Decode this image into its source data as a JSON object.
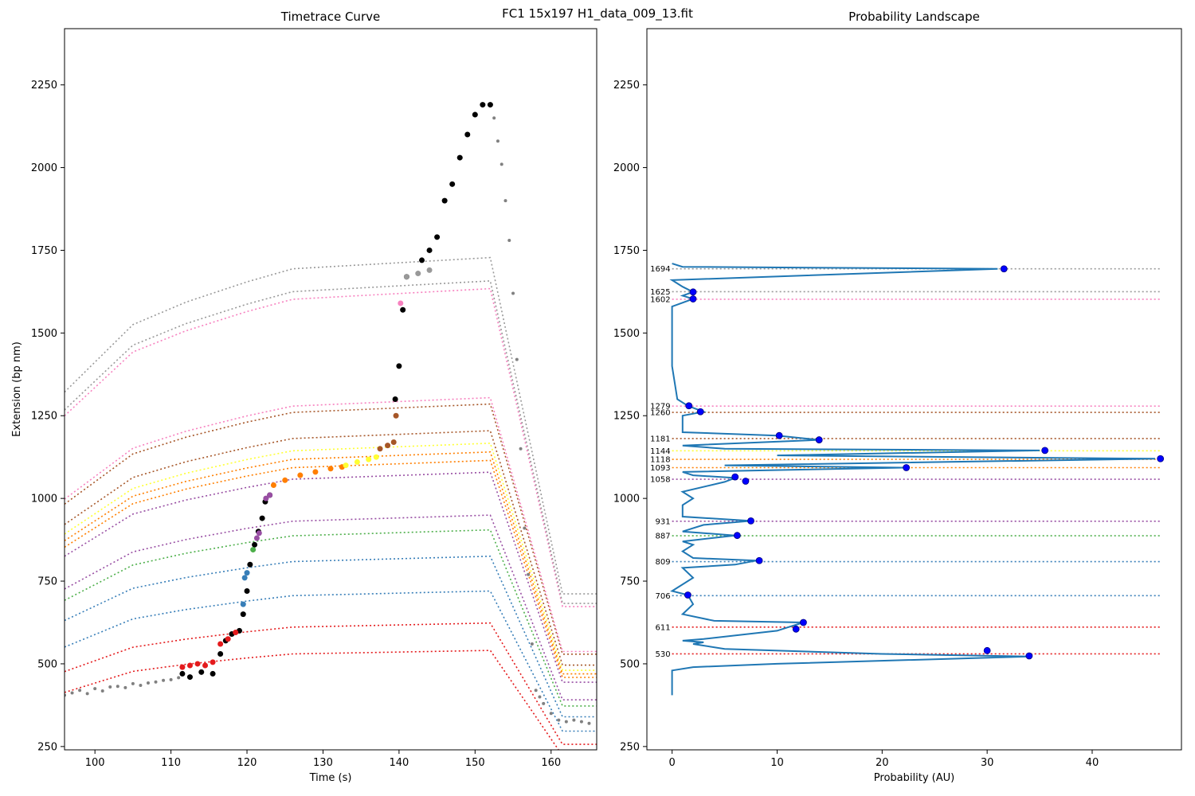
{
  "figure_title": "FC1 15x197 H1_data_009_13.fit",
  "chart_data": [
    {
      "type": "scatter",
      "title": "Timetrace Curve",
      "xlabel": "Time (s)",
      "ylabel": "Extension (bp nm)",
      "xlim": [
        96,
        166
      ],
      "ylim": [
        240,
        2420
      ],
      "xticks": [
        100,
        110,
        120,
        130,
        140,
        150,
        160
      ],
      "yticks": [
        250,
        500,
        750,
        1000,
        1250,
        1500,
        1750,
        2000,
        2250
      ],
      "grid": false,
      "series": [
        {
          "color": "#808080",
          "points": [
            [
              96,
              405
            ],
            [
              97,
              412
            ],
            [
              98,
              420
            ],
            [
              99,
              410
            ],
            [
              100,
              425
            ],
            [
              101,
              418
            ],
            [
              102,
              430
            ],
            [
              103,
              432
            ],
            [
              104,
              428
            ],
            [
              105,
              440
            ],
            [
              106,
              435
            ],
            [
              107,
              442
            ],
            [
              108,
              445
            ],
            [
              109,
              450
            ],
            [
              110,
              452
            ],
            [
              111,
              458
            ],
            [
              152.5,
              2150
            ],
            [
              153,
              2080
            ],
            [
              153.5,
              2010
            ],
            [
              154,
              1900
            ],
            [
              154.5,
              1780
            ],
            [
              155,
              1620
            ],
            [
              155.5,
              1420
            ],
            [
              156,
              1150
            ],
            [
              156.5,
              910
            ],
            [
              157,
              770
            ],
            [
              157.5,
              560
            ],
            [
              158,
              420
            ],
            [
              158.5,
              400
            ],
            [
              159,
              380
            ],
            [
              160,
              350
            ],
            [
              161,
              330
            ],
            [
              162,
              325
            ],
            [
              163,
              330
            ],
            [
              164,
              325
            ],
            [
              165,
              320
            ]
          ]
        },
        {
          "color": "#000000",
          "points": [
            [
              111.5,
              470
            ],
            [
              112.5,
              460
            ],
            [
              114,
              475
            ],
            [
              115.5,
              470
            ],
            [
              116.5,
              530
            ],
            [
              117.2,
              570
            ],
            [
              118,
              590
            ],
            [
              119,
              600
            ],
            [
              119.5,
              650
            ],
            [
              120,
              720
            ],
            [
              120.4,
              800
            ],
            [
              121,
              860
            ],
            [
              121.5,
              900
            ],
            [
              122,
              940
            ],
            [
              122.4,
              990
            ],
            [
              123,
              1010
            ],
            [
              139.5,
              1300
            ],
            [
              140,
              1400
            ],
            [
              140.5,
              1570
            ],
            [
              141,
              1670
            ],
            [
              143,
              1720
            ],
            [
              144,
              1750
            ],
            [
              145,
              1790
            ],
            [
              146,
              1900
            ],
            [
              147,
              1950
            ],
            [
              148,
              2030
            ],
            [
              149,
              2100
            ],
            [
              150,
              2160
            ],
            [
              151,
              2190
            ],
            [
              152,
              2190
            ]
          ]
        },
        {
          "color": "#e41a1c",
          "points": [
            [
              111.5,
              490
            ],
            [
              112.5,
              495
            ],
            [
              113.5,
              500
            ],
            [
              114.5,
              495
            ],
            [
              115.5,
              505
            ],
            [
              116.5,
              560
            ],
            [
              117.5,
              575
            ],
            [
              118.5,
              595
            ]
          ]
        },
        {
          "color": "#377eb8",
          "points": [
            [
              119.5,
              680
            ],
            [
              119.7,
              760
            ],
            [
              120,
              775
            ]
          ]
        },
        {
          "color": "#4daf4a",
          "points": [
            [
              120.8,
              845
            ]
          ]
        },
        {
          "color": "#984ea3",
          "points": [
            [
              121.3,
              880
            ],
            [
              121.6,
              895
            ],
            [
              122.5,
              1000
            ],
            [
              123,
              1010
            ]
          ]
        },
        {
          "color": "#ff7f00",
          "points": [
            [
              123.5,
              1040
            ],
            [
              125,
              1055
            ],
            [
              127,
              1070
            ],
            [
              129,
              1080
            ],
            [
              131,
              1090
            ],
            [
              132.5,
              1095
            ]
          ]
        },
        {
          "color": "#ffff33",
          "points": [
            [
              133,
              1100
            ],
            [
              134.5,
              1110
            ],
            [
              136,
              1118
            ],
            [
              137,
              1125
            ]
          ]
        },
        {
          "color": "#a65628",
          "points": [
            [
              137.5,
              1150
            ],
            [
              138.5,
              1160
            ],
            [
              139.3,
              1170
            ],
            [
              139.6,
              1250
            ]
          ]
        },
        {
          "color": "#f781bf",
          "points": [
            [
              140.2,
              1590
            ]
          ]
        },
        {
          "color": "#999999",
          "points": [
            [
              141,
              1670
            ],
            [
              142.5,
              1680
            ],
            [
              144,
              1690
            ]
          ]
        }
      ]
    },
    {
      "type": "line",
      "title": "Probability Landscape",
      "xlabel": "Probability (AU)",
      "xlim": [
        -2.4,
        48.5
      ],
      "ylim": [
        240,
        2420
      ],
      "xticks": [
        0,
        10,
        20,
        30,
        40
      ],
      "yticks": [
        250,
        500,
        750,
        1000,
        1250,
        1500,
        1750,
        2000,
        2250
      ],
      "grid": false,
      "line_color": "#1f77b4",
      "marker_color": "#0000ff",
      "levels": [
        {
          "value": 530,
          "label": "530",
          "color": "#e41a1c"
        },
        {
          "value": 611,
          "label": "611",
          "color": "#e41a1c"
        },
        {
          "value": 706,
          "label": "706",
          "color": "#377eb8"
        },
        {
          "value": 809,
          "label": "809",
          "color": "#377eb8"
        },
        {
          "value": 887,
          "label": "887",
          "color": "#4daf4a"
        },
        {
          "value": 931,
          "label": "931",
          "color": "#984ea3"
        },
        {
          "value": 1058,
          "label": "1058",
          "color": "#984ea3"
        },
        {
          "value": 1093,
          "label": "1093",
          "color": "#ff7f00"
        },
        {
          "value": 1118,
          "label": "1118",
          "color": "#ff7f00"
        },
        {
          "value": 1144,
          "label": "1144",
          "color": "#ffff33"
        },
        {
          "value": 1181,
          "label": "1181",
          "color": "#a65628"
        },
        {
          "value": 1260,
          "label": "1260",
          "color": "#a65628"
        },
        {
          "value": 1279,
          "label": "1279",
          "color": "#f781bf"
        },
        {
          "value": 1602,
          "label": "1602",
          "color": "#f781bf"
        },
        {
          "value": 1625,
          "label": "1625",
          "color": "#999999"
        },
        {
          "value": 1694,
          "label": "1694",
          "color": "#999999"
        }
      ],
      "peaks": [
        [
          34,
          524
        ],
        [
          30,
          540
        ],
        [
          12.5,
          625
        ],
        [
          11.8,
          605
        ],
        [
          1.5,
          708
        ],
        [
          8.3,
          812
        ],
        [
          6.2,
          888
        ],
        [
          7.5,
          932
        ],
        [
          6,
          1065
        ],
        [
          7,
          1052
        ],
        [
          22.3,
          1093
        ],
        [
          46.5,
          1120
        ],
        [
          35.5,
          1145
        ],
        [
          14,
          1177
        ],
        [
          10.2,
          1190
        ],
        [
          2.7,
          1262
        ],
        [
          1.6,
          1280
        ],
        [
          2,
          1603
        ],
        [
          2,
          1624
        ],
        [
          31.6,
          1694
        ]
      ],
      "curve": [
        [
          0,
          405
        ],
        [
          0,
          480
        ],
        [
          2,
          490
        ],
        [
          10,
          500
        ],
        [
          34,
          522
        ],
        [
          20,
          530
        ],
        [
          5,
          545
        ],
        [
          2,
          560
        ],
        [
          3,
          565
        ],
        [
          1,
          570
        ],
        [
          3,
          575
        ],
        [
          10,
          600
        ],
        [
          11,
          610
        ],
        [
          12.5,
          625
        ],
        [
          4,
          630
        ],
        [
          1,
          650
        ],
        [
          2,
          680
        ],
        [
          1.5,
          708
        ],
        [
          0,
          720
        ],
        [
          2,
          760
        ],
        [
          1,
          790
        ],
        [
          6,
          800
        ],
        [
          8,
          812
        ],
        [
          2,
          820
        ],
        [
          1,
          840
        ],
        [
          2,
          860
        ],
        [
          1,
          870
        ],
        [
          6,
          888
        ],
        [
          1,
          900
        ],
        [
          3,
          920
        ],
        [
          7.5,
          932
        ],
        [
          1,
          945
        ],
        [
          1,
          980
        ],
        [
          2,
          1000
        ],
        [
          1,
          1020
        ],
        [
          5,
          1050
        ],
        [
          6,
          1062
        ],
        [
          2,
          1070
        ],
        [
          1,
          1080
        ],
        [
          22,
          1093
        ],
        [
          5,
          1100
        ],
        [
          46,
          1120
        ],
        [
          10,
          1130
        ],
        [
          35,
          1145
        ],
        [
          5,
          1150
        ],
        [
          1,
          1160
        ],
        [
          14,
          1177
        ],
        [
          10,
          1190
        ],
        [
          1,
          1200
        ],
        [
          1,
          1250
        ],
        [
          3,
          1262
        ],
        [
          1.5,
          1280
        ],
        [
          0.5,
          1300
        ],
        [
          0,
          1400
        ],
        [
          0,
          1580
        ],
        [
          2,
          1603
        ],
        [
          1,
          1613
        ],
        [
          2,
          1624
        ],
        [
          1,
          1640
        ],
        [
          0,
          1660
        ],
        [
          31,
          1694
        ],
        [
          1,
          1700
        ],
        [
          0,
          1710
        ]
      ]
    }
  ]
}
